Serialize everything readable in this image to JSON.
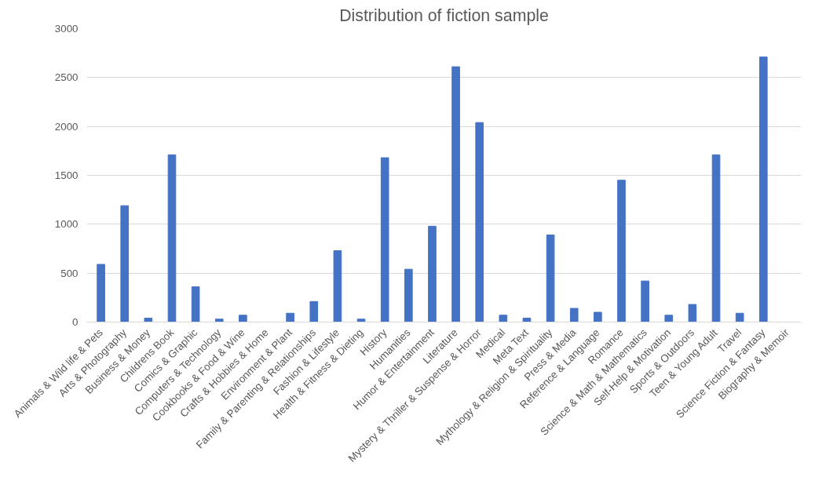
{
  "chart_data": {
    "type": "bar",
    "title": "Distribution of fiction sample",
    "categories": [
      "Animals & Wild life & Pets",
      "Arts & Photography",
      "Business & Money",
      "Childrens Book",
      "Comics & Graphic",
      "Computers & Technology",
      "Cookbooks & Food & Wine",
      "Crafts & Hobbies & Home",
      "Environment & Plant",
      "Family & Parenting & Relationships",
      "Fashion & Lifestyle",
      "Health & Fitness & Dieting",
      "History",
      "Humanities",
      "Humor & Entertainment",
      "Literature",
      "Mystery & Thriller & Suspense & Horror",
      "Medical",
      "Meta Text",
      "Mythology & Religion & Spirituality",
      "Press & Media",
      "Reference & Language",
      "Romance",
      "Science & Math & Mathematics",
      "Self-Help & Motivation",
      "Sports & Outdoors",
      "Teen & Young Adult",
      "Travel",
      "Science Fiction & Fantasy",
      "Biography & Memoir"
    ],
    "values": [
      590,
      1190,
      40,
      1710,
      360,
      30,
      70,
      0,
      90,
      210,
      730,
      30,
      1680,
      540,
      980,
      2610,
      2040,
      70,
      40,
      890,
      140,
      100,
      1450,
      420,
      70,
      180,
      1710,
      90,
      2710,
      0
    ],
    "color": "#4472c4",
    "ylim": [
      0,
      3000
    ],
    "yticks": [
      0,
      500,
      1000,
      1500,
      2000,
      2500,
      3000
    ],
    "grid": "y"
  }
}
